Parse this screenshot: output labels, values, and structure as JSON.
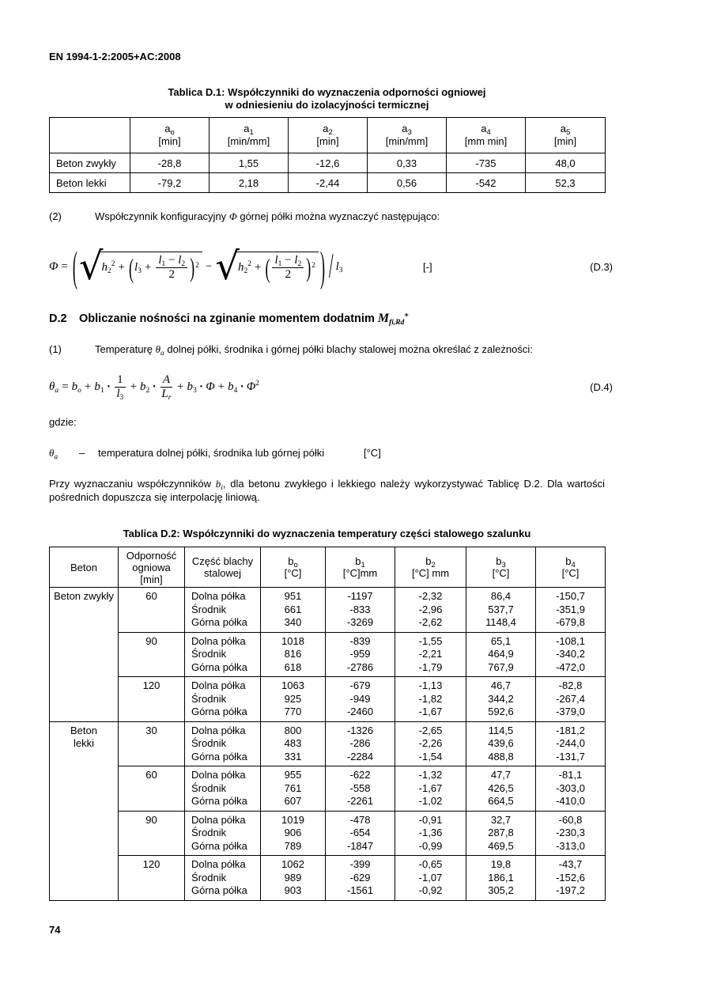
{
  "page": {
    "header_code": "EN 1994-1-2:2005+AC:2008",
    "page_number": "74"
  },
  "table_d1": {
    "title_line1": "Tablica D.1: Współczynniki do wyznaczenia odporności ogniowej",
    "title_line2": "w odniesieniu do izolacyjności termicznej",
    "columns": [
      {
        "sym": "a",
        "sub": "o",
        "unit": "[min]"
      },
      {
        "sym": "a",
        "sub": "1",
        "unit": "[min/mm]"
      },
      {
        "sym": "a",
        "sub": "2",
        "unit": "[min]"
      },
      {
        "sym": "a",
        "sub": "3",
        "unit": "[min/mm]"
      },
      {
        "sym": "a",
        "sub": "4",
        "unit": "[mm min]"
      },
      {
        "sym": "a",
        "sub": "5",
        "unit": "[min]"
      }
    ],
    "rows": [
      {
        "label": "Beton zwykły",
        "values": [
          "-28,8",
          "1,55",
          "-12,6",
          "0,33",
          "-735",
          "48,0"
        ]
      },
      {
        "label": "Beton lekki",
        "values": [
          "-79,2",
          "2,18",
          "-2,44",
          "0,56",
          "-542",
          "52,3"
        ]
      }
    ]
  },
  "para2": {
    "num": "(2)",
    "pre": "Współczynnik konfiguracyjny",
    "phi": "Φ",
    "post": "górnej półki można wyznaczyć następująco:"
  },
  "eq_d3": {
    "tokens": {
      "phi": "Φ",
      "eq": "=",
      "h": "h",
      "l": "l",
      "sub1": "1",
      "sub2": "2",
      "sub3": "3",
      "sup2": "2",
      "plus": "+",
      "minus": "−",
      "two": "2",
      "lparen": "(",
      "rparen": ")",
      "slash": "/",
      "sqrt": "√"
    },
    "unit": "[-]",
    "label": "(D.3)"
  },
  "section_d2": {
    "num": "D.2",
    "title": "Obliczanie nośności na zginanie momentem dodatnim",
    "m": "M",
    "m_sub": "fi,Rd",
    "m_sup": "+"
  },
  "para1": {
    "num": "(1)",
    "pre": "Temperaturę",
    "theta": "θ",
    "theta_sub": "a",
    "post": "dolnej półki, środnika i górnej półki blachy stalowej można określać z zależności:"
  },
  "eq_d4": {
    "tokens": {
      "theta": "θ",
      "a": "a",
      "eq": "=",
      "b": "b",
      "subo": "o",
      "sub1": "1",
      "sub2": "2",
      "sub3": "3",
      "sub4": "4",
      "plus": "+",
      "bullet": "•",
      "one": "1",
      "l": "l",
      "A": "A",
      "L": "L",
      "subr": "r",
      "phi": "Φ",
      "sup2": "2"
    },
    "label": "(D.4)"
  },
  "gdzie_label": "gdzie:",
  "theta_def": {
    "sym": "θ",
    "sub": "a",
    "dash": "–",
    "text": "temperatura dolnej półki, środnika lub górnej półki",
    "unit": "[°C]"
  },
  "interp_para": {
    "pre": "Przy wyznaczaniu współczynników ",
    "b": "b",
    "b_sub": "i",
    "post": ", dla betonu zwykłego i lekkiego należy wykorzystywać Tablicę D.2. Dla wartości pośrednich dopuszcza się interpolację liniową."
  },
  "table_d2": {
    "title": "Tablica D.2: Współczynniki do wyznaczenia temperatury części stalowego szalunku",
    "header": {
      "col1": [
        "Beton"
      ],
      "col2": [
        "Odporność",
        "ogniowa",
        "[min]"
      ],
      "col3": [
        "Część blachy",
        "stalowej"
      ],
      "b_cols": [
        {
          "sym": "b",
          "sub": "o",
          "unit": "[°C]"
        },
        {
          "sym": "b",
          "sub": "1",
          "unit": "[°C]mm"
        },
        {
          "sym": "b",
          "sub": "2",
          "unit": "[°C] mm"
        },
        {
          "sym": "b",
          "sub": "3",
          "unit": "[°C]"
        },
        {
          "sym": "b",
          "sub": "4",
          "unit": "[°C]"
        }
      ]
    },
    "groups": [
      {
        "beton": [
          "Beton zwykły"
        ],
        "blocks": [
          {
            "time": "60",
            "rows": [
              [
                "Dolna półka",
                "951",
                "-1197",
                "-2,32",
                "86,4",
                "-150,7"
              ],
              [
                "Środnik",
                "661",
                "-833",
                "-2,96",
                "537,7",
                "-351,9"
              ],
              [
                "Górna półka",
                "340",
                "-3269",
                "-2,62",
                "1148,4",
                "-679,8"
              ]
            ]
          },
          {
            "time": "90",
            "rows": [
              [
                "Dolna półka",
                "1018",
                "-839",
                "-1,55",
                "65,1",
                "-108,1"
              ],
              [
                "Środnik",
                "816",
                "-959",
                "-2,21",
                "464,9",
                "-340,2"
              ],
              [
                "Górna półka",
                "618",
                "-2786",
                "-1,79",
                "767,9",
                "-472,0"
              ]
            ]
          },
          {
            "time": "120",
            "rows": [
              [
                "Dolna półka",
                "1063",
                "-679",
                "-1,13",
                "46,7",
                "-82,8"
              ],
              [
                "Środnik",
                "925",
                "-949",
                "-1,82",
                "344,2",
                "-267,4"
              ],
              [
                "Górna półka",
                "770",
                "-2460",
                "-1,67",
                "592,6",
                "-379,0"
              ]
            ]
          }
        ]
      },
      {
        "beton": [
          "Beton",
          "lekki"
        ],
        "blocks": [
          {
            "time": "30",
            "rows": [
              [
                "Dolna półka",
                "800",
                "-1326",
                "-2,65",
                "114,5",
                "-181,2"
              ],
              [
                "Środnik",
                "483",
                "-286",
                "-2,26",
                "439,6",
                "-244,0"
              ],
              [
                "Górna półka",
                "331",
                "-2284",
                "-1,54",
                "488,8",
                "-131,7"
              ]
            ]
          },
          {
            "time": "60",
            "rows": [
              [
                "Dolna półka",
                "955",
                "-622",
                "-1,32",
                "47,7",
                "-81,1"
              ],
              [
                "Środnik",
                "761",
                "-558",
                "-1,67",
                "426,5",
                "-303,0"
              ],
              [
                "Górna półka",
                "607",
                "-2261",
                "-1,02",
                "664,5",
                "-410,0"
              ]
            ]
          },
          {
            "time": "90",
            "rows": [
              [
                "Dolna półka",
                "1019",
                "-478",
                "-0,91",
                "32,7",
                "-60,8"
              ],
              [
                "Środnik",
                "906",
                "-654",
                "-1,36",
                "287,8",
                "-230,3"
              ],
              [
                "Górna półka",
                "789",
                "-1847",
                "-0,99",
                "469,5",
                "-313,0"
              ]
            ]
          },
          {
            "time": "120",
            "rows": [
              [
                "Dolna półka",
                "1062",
                "-399",
                "-0,65",
                "19,8",
                "-43,7"
              ],
              [
                "Środnik",
                "989",
                "-629",
                "-1,07",
                "186,1",
                "-152,6"
              ],
              [
                "Górna półka",
                "903",
                "-1561",
                "-0,92",
                "305,2",
                "-197,2"
              ]
            ]
          }
        ]
      }
    ]
  }
}
